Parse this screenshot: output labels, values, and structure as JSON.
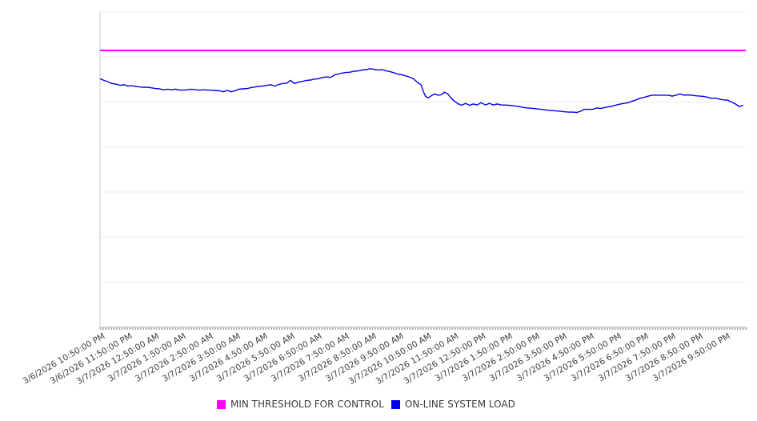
{
  "chart_data": {
    "type": "line",
    "title": "",
    "xlabel": "",
    "ylabel": "",
    "y_axis": {
      "tick_labels_visible": false,
      "ylim": [
        0,
        100
      ],
      "gridline_rows": 7,
      "grid": true
    },
    "x_axis": {
      "labels": [
        "3/6/2026 10:50:00 PM",
        "3/6/2026 11:50:00 PM",
        "3/7/2026 12:50:00 AM",
        "3/7/2026 1:50:00 AM",
        "3/7/2026 2:50:00 AM",
        "3/7/2026 3:50:00 AM",
        "3/7/2026 4:50:00 AM",
        "3/7/2026 5:50:00 AM",
        "3/7/2026 6:50:00 AM",
        "3/7/2026 7:50:00 AM",
        "3/7/2026 8:50:00 AM",
        "3/7/2026 9:50:00 AM",
        "3/7/2026 10:50:00 AM",
        "3/7/2026 11:50:00 AM",
        "3/7/2026 12:50:00 PM",
        "3/7/2026 1:50:00 PM",
        "3/7/2026 2:50:00 PM",
        "3/7/2026 3:50:00 PM",
        "3/7/2026 4:50:00 PM",
        "3/7/2026 5:50:00 PM",
        "3/7/2026 6:50:00 PM",
        "3/7/2026 7:50:00 PM",
        "3/7/2026 8:50:00 PM",
        "3/7/2026 9:50:00 PM"
      ],
      "minor_ticks": "dense"
    },
    "legend_position": "bottom",
    "series": [
      {
        "name": "MIN THRESHOLD FOR CONTROL",
        "color": "#FF00FF",
        "type": "constant-threshold",
        "value": 87.8
      },
      {
        "name": "ON-LINE SYSTEM LOAD",
        "color": "#0000EE",
        "type": "line",
        "points_unit": "percent of plot width / percent of unlabeled y-range",
        "points": [
          [
            0,
            78.8
          ],
          [
            0.6,
            78.3
          ],
          [
            1.2,
            77.9
          ],
          [
            1.8,
            77.3
          ],
          [
            2.5,
            77.1
          ],
          [
            3.1,
            76.7
          ],
          [
            3.7,
            76.9
          ],
          [
            4.3,
            76.5
          ],
          [
            4.9,
            76.6
          ],
          [
            5.5,
            76.4
          ],
          [
            6.2,
            76.2
          ],
          [
            6.8,
            76.1
          ],
          [
            7.4,
            76.1
          ],
          [
            8,
            75.9
          ],
          [
            8.6,
            75.7
          ],
          [
            9.2,
            75.6
          ],
          [
            9.8,
            75.3
          ],
          [
            10.5,
            75.5
          ],
          [
            11.1,
            75.3
          ],
          [
            11.7,
            75.5
          ],
          [
            12.3,
            75.2
          ],
          [
            12.9,
            75.2
          ],
          [
            13.5,
            75.3
          ],
          [
            14.2,
            75.5
          ],
          [
            14.8,
            75.3
          ],
          [
            15.4,
            75.2
          ],
          [
            16,
            75.3
          ],
          [
            16.6,
            75.2
          ],
          [
            17.2,
            75.2
          ],
          [
            17.8,
            75.1
          ],
          [
            18.5,
            75
          ],
          [
            19.1,
            74.7
          ],
          [
            19.7,
            75.1
          ],
          [
            20.3,
            74.7
          ],
          [
            20.9,
            75
          ],
          [
            21.5,
            75.5
          ],
          [
            22.1,
            75.6
          ],
          [
            22.8,
            75.7
          ],
          [
            23.4,
            76
          ],
          [
            24,
            76.2
          ],
          [
            24.6,
            76.4
          ],
          [
            25.2,
            76.5
          ],
          [
            25.8,
            76.7
          ],
          [
            26.4,
            76.9
          ],
          [
            27.1,
            76.5
          ],
          [
            27.7,
            77
          ],
          [
            28.3,
            77.3
          ],
          [
            28.9,
            77.4
          ],
          [
            29.5,
            78.3
          ],
          [
            30.1,
            77.3
          ],
          [
            30.8,
            77.8
          ],
          [
            31.4,
            78
          ],
          [
            32,
            78.3
          ],
          [
            32.6,
            78.4
          ],
          [
            33.2,
            78.7
          ],
          [
            33.8,
            78.8
          ],
          [
            34.4,
            79.2
          ],
          [
            35.1,
            79.4
          ],
          [
            35.7,
            79.2
          ],
          [
            36.3,
            80
          ],
          [
            36.9,
            80.3
          ],
          [
            37.5,
            80.6
          ],
          [
            38.1,
            80.8
          ],
          [
            38.7,
            80.9
          ],
          [
            39.4,
            81.2
          ],
          [
            40,
            81.3
          ],
          [
            40.6,
            81.6
          ],
          [
            41.2,
            81.7
          ],
          [
            41.8,
            82
          ],
          [
            42.4,
            81.8
          ],
          [
            43.1,
            81.6
          ],
          [
            43.7,
            81.7
          ],
          [
            44.3,
            81.3
          ],
          [
            44.9,
            81.1
          ],
          [
            45.5,
            80.7
          ],
          [
            46.1,
            80.3
          ],
          [
            46.7,
            80.1
          ],
          [
            47.4,
            79.7
          ],
          [
            48,
            79.3
          ],
          [
            48.6,
            78.7
          ],
          [
            49.2,
            77.6
          ],
          [
            49.7,
            76.9
          ],
          [
            50.1,
            74.6
          ],
          [
            50.4,
            73.3
          ],
          [
            50.8,
            72.7
          ],
          [
            51.3,
            73.4
          ],
          [
            51.8,
            74
          ],
          [
            52.3,
            73.6
          ],
          [
            52.8,
            73.7
          ],
          [
            53.3,
            74.5
          ],
          [
            53.8,
            74.1
          ],
          [
            54.2,
            73.1
          ],
          [
            54.7,
            72
          ],
          [
            55.4,
            70.9
          ],
          [
            56,
            70.4
          ],
          [
            56.6,
            71
          ],
          [
            57.2,
            70.4
          ],
          [
            57.8,
            70.8
          ],
          [
            58.4,
            70.5
          ],
          [
            59,
            71.2
          ],
          [
            59.7,
            70.5
          ],
          [
            60.3,
            71
          ],
          [
            60.9,
            70.5
          ],
          [
            61.5,
            70.8
          ],
          [
            62.1,
            70.5
          ],
          [
            63.3,
            70.4
          ],
          [
            64.6,
            70.1
          ],
          [
            65.8,
            69.6
          ],
          [
            67,
            69.4
          ],
          [
            68.3,
            69.1
          ],
          [
            69.5,
            68.8
          ],
          [
            70.7,
            68.6
          ],
          [
            72,
            68.3
          ],
          [
            72.6,
            68.2
          ],
          [
            73.2,
            68.2
          ],
          [
            73.8,
            68.1
          ],
          [
            74.4,
            68.5
          ],
          [
            75,
            69.1
          ],
          [
            75.7,
            69.1
          ],
          [
            76.3,
            69.1
          ],
          [
            76.9,
            69.5
          ],
          [
            77.5,
            69.4
          ],
          [
            78.1,
            69.6
          ],
          [
            78.7,
            69.9
          ],
          [
            79.3,
            70.1
          ],
          [
            80,
            70.5
          ],
          [
            80.6,
            70.8
          ],
          [
            81.2,
            71
          ],
          [
            81.8,
            71.2
          ],
          [
            82.4,
            71.7
          ],
          [
            83,
            72.1
          ],
          [
            83.6,
            72.6
          ],
          [
            84.3,
            72.9
          ],
          [
            84.9,
            73.3
          ],
          [
            85.5,
            73.6
          ],
          [
            86.1,
            73.6
          ],
          [
            86.7,
            73.6
          ],
          [
            87.3,
            73.6
          ],
          [
            88,
            73.6
          ],
          [
            88.6,
            73.3
          ],
          [
            89.2,
            73.6
          ],
          [
            89.8,
            74
          ],
          [
            90.4,
            73.6
          ],
          [
            91,
            73.7
          ],
          [
            91.6,
            73.6
          ],
          [
            92.3,
            73.4
          ],
          [
            92.9,
            73.3
          ],
          [
            93.5,
            73.2
          ],
          [
            94.1,
            72.9
          ],
          [
            94.7,
            72.6
          ],
          [
            95.3,
            72.7
          ],
          [
            95.9,
            72.3
          ],
          [
            96.6,
            72.1
          ],
          [
            97.2,
            72
          ],
          [
            97.8,
            71.4
          ],
          [
            98.4,
            70.8
          ],
          [
            99,
            70
          ],
          [
            99.6,
            70.4
          ]
        ]
      }
    ]
  },
  "legend": {
    "threshold_label": "MIN THRESHOLD FOR CONTROL",
    "load_label": "ON-LINE SYSTEM LOAD"
  }
}
